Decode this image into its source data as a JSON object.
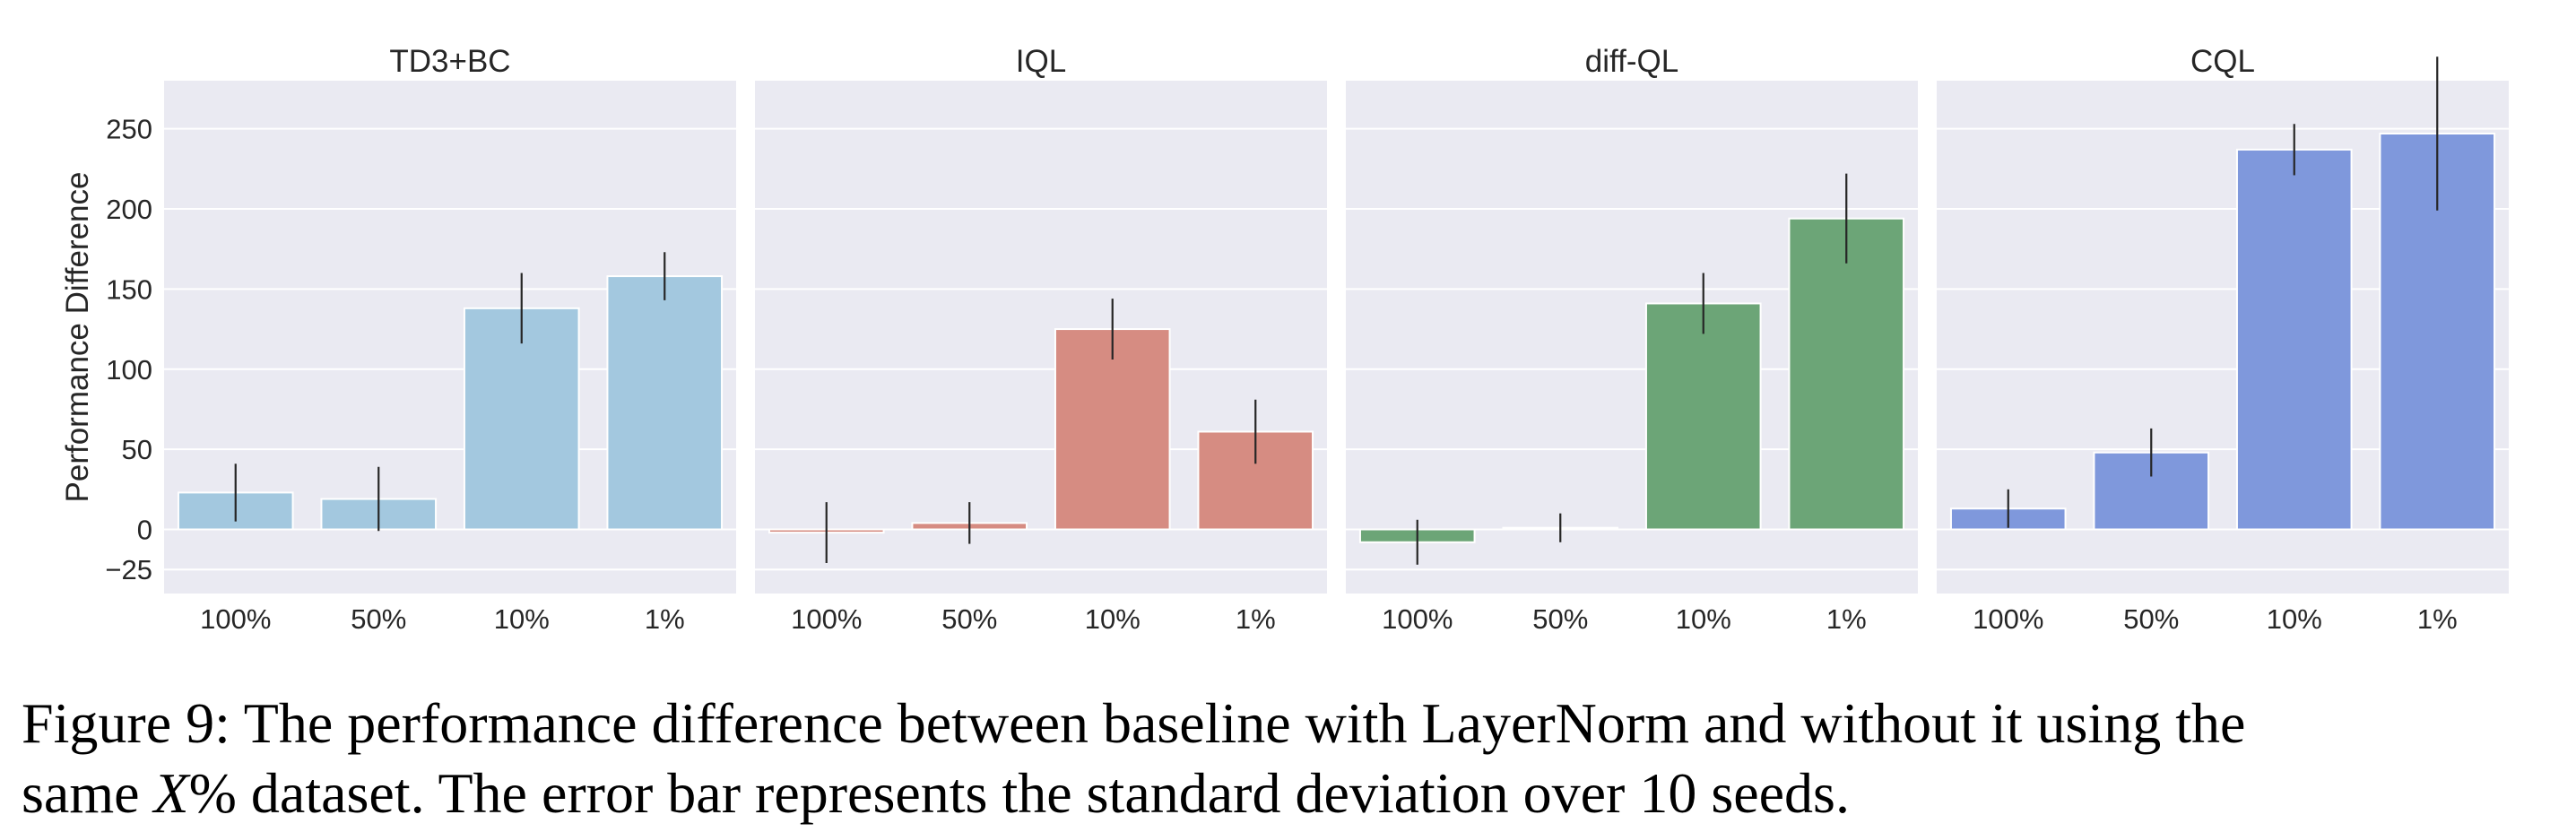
{
  "chart_data": {
    "type": "bar",
    "ylabel": "Performance Difference",
    "ylim": [
      -40,
      280
    ],
    "yticks": [
      -25,
      0,
      50,
      100,
      150,
      200,
      250
    ],
    "categories": [
      "100%",
      "50%",
      "10%",
      "1%"
    ],
    "grid": true,
    "panels": [
      {
        "title": "TD3+BC",
        "color": "#a3c8df",
        "values": [
          23,
          19,
          138,
          158
        ],
        "errors": [
          18,
          20,
          22,
          15
        ]
      },
      {
        "title": "IQL",
        "color": "#d68c82",
        "values": [
          -2,
          4,
          125,
          61
        ],
        "errors": [
          19,
          13,
          19,
          20
        ]
      },
      {
        "title": "diff-QL",
        "color": "#6ca577",
        "values": [
          -8,
          1,
          141,
          194
        ],
        "errors": [
          14,
          9,
          19,
          28
        ]
      },
      {
        "title": "CQL",
        "color": "#7f98dc",
        "values": [
          13,
          48,
          237,
          247
        ],
        "errors": [
          12,
          15,
          16,
          48
        ]
      }
    ]
  },
  "caption": {
    "line1": "Figure 9: The performance difference between baseline with LayerNorm and without it using the",
    "line2_before": "same ",
    "line2_var": "X",
    "line2_after": "% dataset. The error bar represents the standard deviation over 10 seeds."
  }
}
